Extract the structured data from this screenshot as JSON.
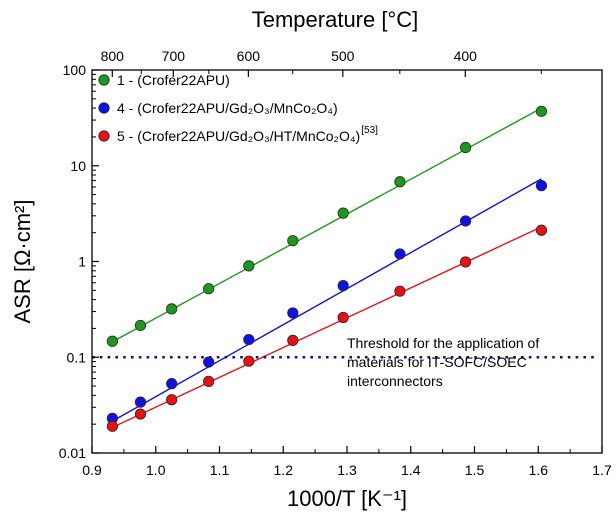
{
  "chart_data": {
    "type": "scatter",
    "xlabel": "1000/T [K⁻¹]",
    "ylabel": "ASR [Ω·cm²]",
    "top_axis_label": "Temperature [°C]",
    "xlim": [
      0.9,
      1.7
    ],
    "ylim": [
      0.01,
      100
    ],
    "y_scale": "log",
    "grid": false,
    "legend_position": "top-left",
    "x_ticks": [
      0.9,
      1.0,
      1.1,
      1.2,
      1.3,
      1.4,
      1.5,
      1.6,
      1.7
    ],
    "x_tick_labels": [
      "0.9",
      "1.0",
      "1.1",
      "1.2",
      "1.3",
      "1.4",
      "1.5",
      "1.6",
      "1.7"
    ],
    "y_ticks": [
      0.01,
      0.1,
      1,
      10,
      100
    ],
    "y_tick_labels": [
      "0.01",
      "0.1",
      "1",
      "10",
      "100"
    ],
    "top_ticks_celsius": [
      800,
      700,
      600,
      500,
      400
    ],
    "top_tick_labels": [
      "800",
      "700",
      "600",
      "500",
      "400"
    ],
    "series": [
      {
        "name": "1 - (Crofer22APU)",
        "color": "#1a9a1a",
        "x": [
          0.932,
          0.976,
          1.025,
          1.083,
          1.146,
          1.215,
          1.294,
          1.383,
          1.486,
          1.605
        ],
        "y": [
          0.147,
          0.215,
          0.32,
          0.52,
          0.9,
          1.65,
          3.2,
          6.8,
          15.5,
          37
        ],
        "fit": [
          [
            0.932,
            0.145
          ],
          [
            1.605,
            40
          ]
        ]
      },
      {
        "name": "4 - (Crofer22APU/Gd₂O₃/MnCo₂O₄)",
        "color": "#1010e8",
        "x": [
          0.932,
          0.976,
          1.025,
          1.083,
          1.146,
          1.215,
          1.294,
          1.383,
          1.486,
          1.605
        ],
        "y": [
          0.023,
          0.034,
          0.053,
          0.089,
          0.153,
          0.29,
          0.56,
          1.2,
          2.65,
          6.2
        ],
        "fit": [
          [
            0.932,
            0.0215
          ],
          [
            1.605,
            7.3
          ]
        ]
      },
      {
        "name": "5 - (Crofer22APU/Gd₂O₃/HT/MnCo₂O₄)",
        "name_superscript": "[53]",
        "color": "#e81010",
        "x": [
          0.932,
          0.976,
          1.025,
          1.083,
          1.146,
          1.215,
          1.294,
          1.383,
          1.486,
          1.605
        ],
        "y": [
          0.019,
          0.0255,
          0.036,
          0.056,
          0.091,
          0.15,
          0.26,
          0.49,
          0.99,
          2.12
        ],
        "fit": [
          [
            0.932,
            0.0185
          ],
          [
            1.605,
            2.3
          ]
        ]
      }
    ],
    "threshold": {
      "y": 0.1,
      "color": "#10108a",
      "lines": [
        "Threshold for the application of",
        "materials for IT-SOFC/SOEC",
        "interconnectors"
      ]
    }
  }
}
